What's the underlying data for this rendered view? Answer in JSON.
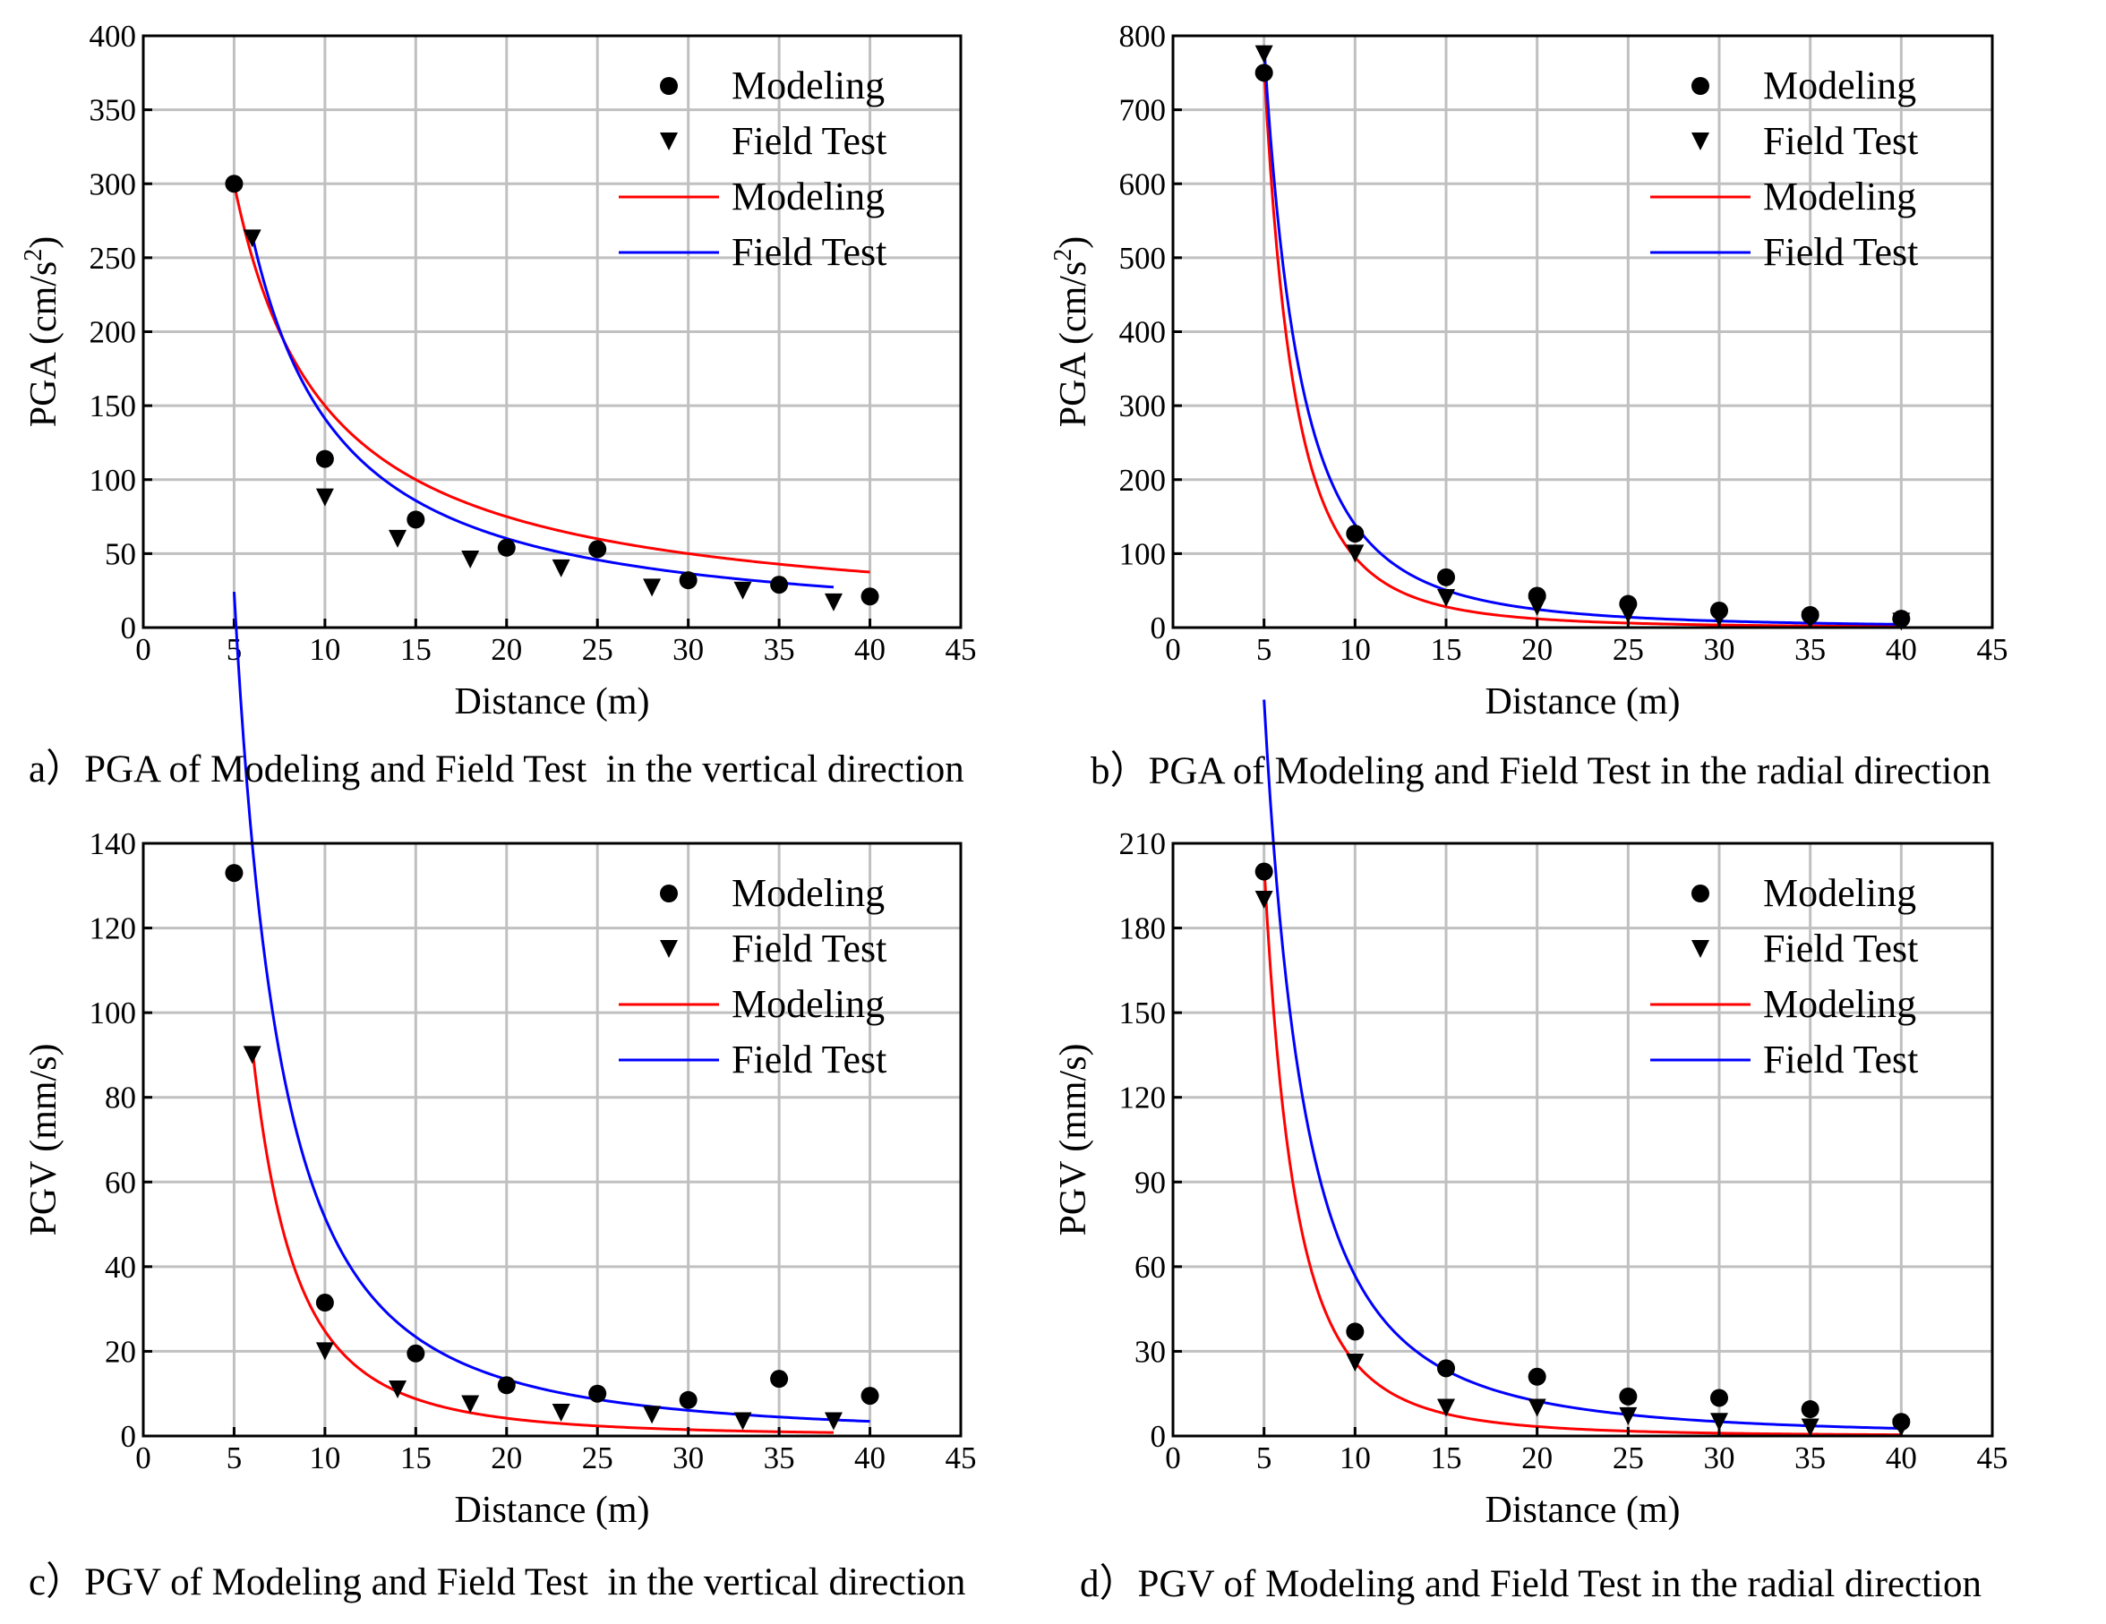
{
  "charts": [
    {
      "type": "scatter+line",
      "caption": "a）PGA of Modeling and Field Test  in the vertical direction",
      "xlabel": "Distance (m)",
      "ylabel": "PGA (cm/s",
      "ylabel_sup": "2",
      "ylabel_end": ")",
      "xlim": [
        0,
        45
      ],
      "ylim": [
        0,
        400
      ],
      "xticks": [
        0,
        5,
        10,
        15,
        20,
        25,
        30,
        35,
        40,
        45
      ],
      "yticks": [
        0,
        50,
        100,
        150,
        200,
        250,
        300,
        350,
        400
      ],
      "grid": true,
      "legend_position": "top-right",
      "series": [
        {
          "name": "Modeling",
          "kind": "points",
          "marker": "circle",
          "x": [
            5,
            10,
            15,
            20,
            25,
            30,
            35,
            40
          ],
          "y": [
            300,
            114,
            73,
            54,
            53,
            32,
            29,
            21
          ]
        },
        {
          "name": "Field Test",
          "kind": "points",
          "marker": "triangle-down",
          "x": [
            6,
            10,
            14,
            18,
            23,
            28,
            33,
            38
          ],
          "y": [
            263,
            88,
            60,
            46,
            40,
            27,
            25,
            17
          ]
        },
        {
          "name": "Modeling",
          "kind": "curve",
          "color": "#ff0000",
          "fit": {
            "a": 1500,
            "b": 1.0
          },
          "x_range": [
            5,
            40
          ]
        },
        {
          "name": "Field Test",
          "kind": "curve",
          "color": "#0000ff",
          "fit": {
            "a": 2400,
            "b": 1.23
          },
          "x_range": [
            6,
            38
          ]
        }
      ]
    },
    {
      "type": "scatter+line",
      "caption": "b）PGA of Modeling and Field Test in the radial direction",
      "xlabel": "Distance (m)",
      "ylabel": "PGA (cm/s",
      "ylabel_sup": "2",
      "ylabel_end": ")",
      "xlim": [
        0,
        45
      ],
      "ylim": [
        0,
        800
      ],
      "xticks": [
        0,
        5,
        10,
        15,
        20,
        25,
        30,
        35,
        40,
        45
      ],
      "yticks": [
        0,
        100,
        200,
        300,
        400,
        500,
        600,
        700,
        800
      ],
      "grid": true,
      "legend_position": "top-right",
      "series": [
        {
          "name": "Modeling",
          "kind": "points",
          "marker": "circle",
          "x": [
            5,
            10,
            15,
            20,
            25,
            30,
            35,
            40
          ],
          "y": [
            750,
            127,
            68,
            43,
            32,
            23,
            17,
            12
          ]
        },
        {
          "name": "Field Test",
          "kind": "points",
          "marker": "triangle-down",
          "x": [
            5,
            10,
            15,
            20,
            25,
            30,
            35,
            40
          ],
          "y": [
            775,
            100,
            40,
            28,
            18,
            13,
            10,
            8
          ]
        },
        {
          "name": "Modeling",
          "kind": "curve",
          "color": "#ff0000",
          "fit": {
            "a": 95000,
            "b": 3.0
          },
          "x_range": [
            5,
            40
          ]
        },
        {
          "name": "Field Test",
          "kind": "curve",
          "color": "#0000ff",
          "fit": {
            "a": 44000,
            "b": 2.5
          },
          "x_range": [
            5,
            40
          ]
        }
      ]
    },
    {
      "type": "scatter+line",
      "caption": "c）PGV of Modeling and Field Test  in the vertical direction",
      "xlabel": "Distance (m)",
      "ylabel": "PGV (mm/s)",
      "ylabel_sup": "",
      "ylabel_end": "",
      "xlim": [
        0,
        45
      ],
      "ylim": [
        0,
        140
      ],
      "xticks": [
        0,
        5,
        10,
        15,
        20,
        25,
        30,
        35,
        40,
        45
      ],
      "yticks": [
        0,
        20,
        40,
        60,
        80,
        100,
        120,
        140
      ],
      "grid": true,
      "legend_position": "top-right",
      "series": [
        {
          "name": "Modeling",
          "kind": "points",
          "marker": "circle",
          "x": [
            5,
            10,
            15,
            20,
            25,
            30,
            35,
            40
          ],
          "y": [
            133,
            31.5,
            19.5,
            12,
            10,
            8.5,
            13.5,
            9.5
          ]
        },
        {
          "name": "Field Test",
          "kind": "points",
          "marker": "triangle-down",
          "x": [
            6,
            10,
            14,
            18,
            23,
            28,
            33,
            38
          ],
          "y": [
            90,
            20,
            11,
            7.5,
            5.5,
            5,
            3.5,
            3.5
          ]
        },
        {
          "name": "Modeling",
          "kind": "curve",
          "color": "#ff0000",
          "fit": {
            "a": 9000,
            "b": 2.56
          },
          "x_range": [
            6,
            38
          ]
        },
        {
          "name": "Field Test",
          "kind": "curve",
          "color": "#0000ff",
          "fit": {
            "a": 4600,
            "b": 1.95
          },
          "x_range": [
            5,
            40
          ]
        }
      ]
    },
    {
      "type": "scatter+line",
      "caption": "d）PGV of Modeling and Field Test in the radial direction",
      "xlabel": "Distance (m)",
      "ylabel": "PGV (mm/s)",
      "ylabel_sup": "",
      "ylabel_end": "",
      "xlim": [
        0,
        45
      ],
      "ylim": [
        0,
        210
      ],
      "xticks": [
        0,
        5,
        10,
        15,
        20,
        25,
        30,
        35,
        40,
        45
      ],
      "yticks": [
        0,
        30,
        60,
        90,
        120,
        150,
        180,
        210
      ],
      "grid": true,
      "legend_position": "top-right",
      "series": [
        {
          "name": "Modeling",
          "kind": "points",
          "marker": "circle",
          "x": [
            5,
            10,
            15,
            20,
            25,
            30,
            35,
            40
          ],
          "y": [
            200,
            37,
            24,
            21,
            14,
            13.5,
            9.5,
            5
          ]
        },
        {
          "name": "Field Test",
          "kind": "points",
          "marker": "triangle-down",
          "x": [
            5,
            10,
            15,
            20,
            25,
            30,
            35,
            40
          ],
          "y": [
            190,
            26,
            10,
            10,
            7,
            5,
            3,
            3
          ]
        },
        {
          "name": "Modeling",
          "kind": "curve",
          "color": "#ff0000",
          "fit": {
            "a": 23750,
            "b": 2.96
          },
          "x_range": [
            5,
            40
          ]
        },
        {
          "name": "Field Test",
          "kind": "curve",
          "color": "#0000ff",
          "fit": {
            "a": 9000,
            "b": 2.2
          },
          "x_range": [
            5,
            40
          ]
        }
      ]
    }
  ]
}
